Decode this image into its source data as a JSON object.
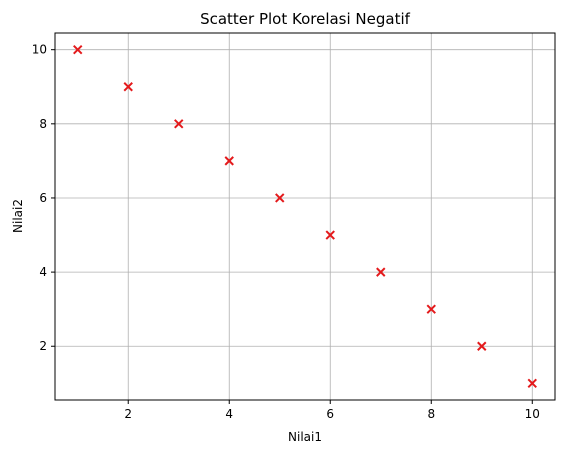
{
  "chart_data": {
    "type": "scatter",
    "title": "Scatter Plot Korelasi Negatif",
    "xlabel": "Nilai1",
    "ylabel": "Nilai2",
    "x": [
      1,
      2,
      3,
      4,
      5,
      6,
      7,
      8,
      9,
      10
    ],
    "y": [
      10,
      9,
      8,
      7,
      6,
      5,
      4,
      3,
      2,
      1
    ],
    "xlim": [
      0.55,
      10.45
    ],
    "ylim": [
      0.55,
      10.45
    ],
    "xticks": [
      2,
      4,
      6,
      8,
      10
    ],
    "yticks": [
      2,
      4,
      6,
      8,
      10
    ],
    "grid": true,
    "marker": "x",
    "color": "#e41a1c"
  }
}
